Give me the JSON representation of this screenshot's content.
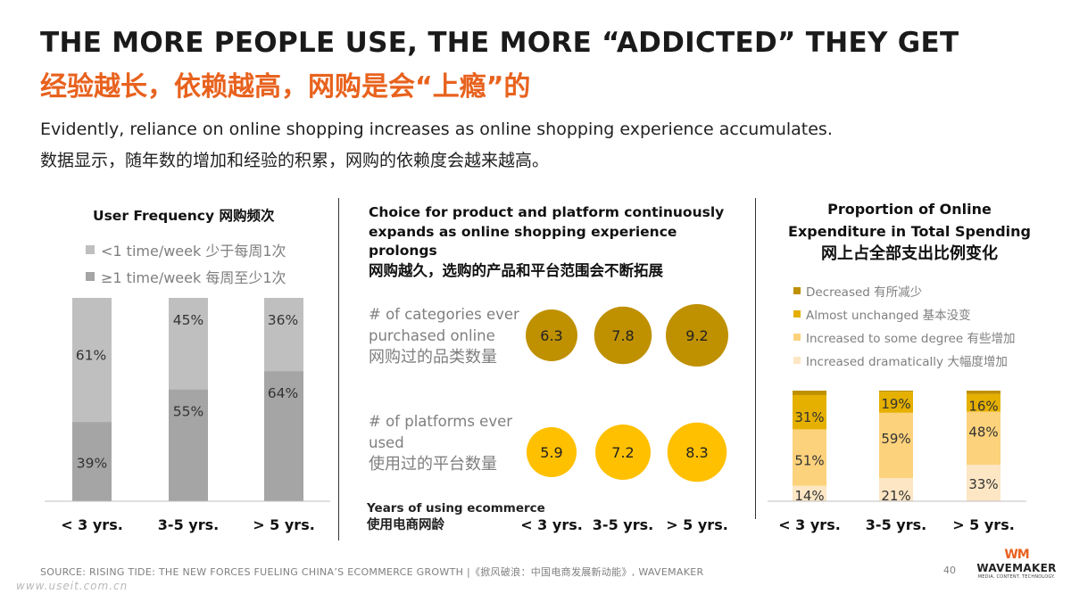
{
  "title_en": "THE MORE PEOPLE USE, THE MORE “ADDICTED” THEY GET",
  "title_cn": "经验越长，依赖越高，网购是会“上瘾”的",
  "subtitle_en": "Evidently, reliance on online shopping increases as online shopping experience accumulates.",
  "subtitle_cn": "数据显示，随年数的增加和经验的积累，网购的依赖度会越来越高。",
  "colors": {
    "accent": "#e8621e",
    "freq_low": "#bfbfbf",
    "freq_high": "#a5a5a5",
    "bubble_categories": "#bf9000",
    "bubble_platforms": "#ffc000",
    "exp_decreased": "#bf9000",
    "exp_unchanged": "#e5b000",
    "exp_some": "#fdd27c",
    "exp_dramatic": "#fde6c4"
  },
  "chart_data": [
    {
      "type": "bar",
      "stacked": true,
      "title": "User Frequency 网购频次",
      "categories": [
        "< 3 yrs.",
        "3-5 yrs.",
        "> 5 yrs."
      ],
      "series": [
        {
          "name": "<1 time/week 少于每周1次",
          "values": [
            61,
            45,
            36
          ],
          "labels": [
            "61%",
            "45%",
            "36%"
          ]
        },
        {
          "name": "≥1 time/week 每周至少1次",
          "values": [
            39,
            55,
            64
          ],
          "labels": [
            "39%",
            "55%",
            "64%"
          ]
        }
      ],
      "ylim": [
        0,
        100
      ],
      "legend": "top"
    },
    {
      "type": "scatter",
      "title": "Choice for product and platform continuously expands as online shopping experience prolongs",
      "title_cn": "网购越久，选购的产品和平台范围会不断拓展",
      "xlabel": "Years of using ecommerce",
      "xlabel_cn": "使用电商网龄",
      "categories": [
        "< 3 yrs.",
        "3-5 yrs.",
        "> 5 yrs."
      ],
      "series": [
        {
          "name": "# of categories ever purchased online",
          "name_cn": "网购过的品类数量",
          "values": [
            6.3,
            7.8,
            9.2
          ],
          "labels": [
            "6.3",
            "7.8",
            "9.2"
          ]
        },
        {
          "name": "# of platforms ever used",
          "name_cn": "使用过的平台数量",
          "values": [
            5.9,
            7.2,
            8.3
          ],
          "labels": [
            "5.9",
            "7.2",
            "8.3"
          ]
        }
      ]
    },
    {
      "type": "bar",
      "stacked": true,
      "title": "Proportion of Online Expenditure in Total Spending",
      "title_cn": "网上占全部支出比例变化",
      "categories": [
        "< 3 yrs.",
        "3-5 yrs.",
        "> 5 yrs."
      ],
      "series": [
        {
          "name": "Increased dramatically 大幅度增加",
          "values": [
            14,
            21,
            33
          ],
          "labels": [
            "14%",
            "21%",
            "33%"
          ]
        },
        {
          "name": "Increased to some degree 有些增加",
          "values": [
            51,
            59,
            48
          ],
          "labels": [
            "51%",
            "59%",
            "48%"
          ]
        },
        {
          "name": "Almost unchanged 基本没变",
          "values": [
            31,
            19,
            16
          ],
          "labels": [
            "31%",
            "19%",
            "16%"
          ]
        },
        {
          "name": "Decreased 有所减少",
          "values": [
            4,
            1,
            3
          ],
          "labels": [
            "",
            "",
            ""
          ]
        }
      ],
      "ylim": [
        0,
        100
      ],
      "legend": "top"
    }
  ],
  "footer": {
    "source": "SOURCE: RISING TIDE: THE NEW FORCES FUELING CHINA’S ECOMMERCE GROWTH |《掀风破浪：中国电商发展新动能》, WAVEMAKER",
    "page": "40"
  },
  "logo": {
    "mark": "WM",
    "name": "WAVEMAKER",
    "tagline": "MEDIA. CONTENT. TECHNOLOGY."
  },
  "watermark": "www.useit.com.cn"
}
